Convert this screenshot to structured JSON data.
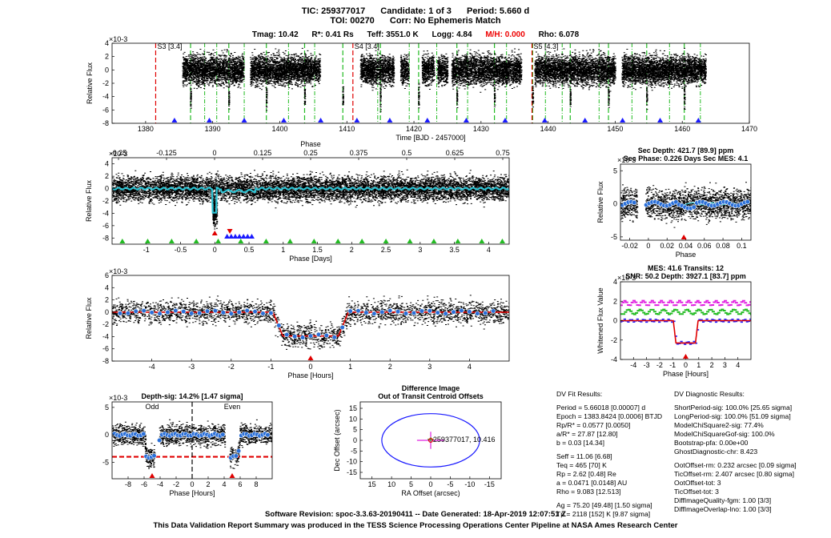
{
  "header": {
    "tic": "TIC: 259377017",
    "candidate": "Candidate: 1 of 3",
    "period": "Period: 5.660 d",
    "toi": "TOI: 00270",
    "corr": "Corr: No Ephemeris Match"
  },
  "stellar": {
    "tmag": "Tmag: 10.42",
    "rstar": "R*: 0.41 Rs",
    "teff": "Teff: 3551.0 K",
    "logg": "Logg: 4.84",
    "mh": "M/H: 0.000",
    "rho": "Rho: 6.078"
  },
  "colors": {
    "data": "#000000",
    "binned": "#2a6fd8",
    "model": "#e00000",
    "cyan": "#2ec4d4",
    "green": "#22bb22",
    "blue": "#1a1aff",
    "magenta": "#e020e0",
    "red_marker": "#e00000"
  },
  "chart_data": [
    {
      "id": "full_lightcurve",
      "type": "scatter",
      "xlabel": "Time [BJD - 2457000]",
      "ylabel": "Relative Flux",
      "exponent": "x10^-3",
      "xlim": [
        1375,
        1470
      ],
      "ylim": [
        -8,
        4
      ],
      "xticks": [
        1380,
        1390,
        1400,
        1410,
        1420,
        1430,
        1440,
        1450,
        1460,
        1470
      ],
      "yticks": [
        -8,
        -6,
        -4,
        -2,
        0,
        2,
        4
      ],
      "data_segments": [
        [
          1385.5,
          1394.6
        ],
        [
          1395.6,
          1406.0
        ],
        [
          1412.0,
          1417.0
        ],
        [
          1418.0,
          1419.2
        ],
        [
          1421.2,
          1423.0
        ],
        [
          1423.5,
          1425.0
        ],
        [
          1425.6,
          1436.0
        ],
        [
          1438.0,
          1450.0
        ],
        [
          1451.0,
          1463.5
        ]
      ],
      "sector_markers": [
        {
          "x": 1381.5,
          "label": "S3 [3.4]"
        },
        {
          "x": 1410.9,
          "label": "S4 [3.4]"
        },
        {
          "x": 1437.6,
          "label": "S5 [4.3]"
        }
      ],
      "transits_candidate": [
        1386.7,
        1392.4,
        1398.0,
        1403.7,
        1409.4,
        1415.0,
        1420.7,
        1426.4,
        1432.0,
        1437.7,
        1443.3,
        1449.0,
        1454.7,
        1460.3
      ],
      "transits_other": [
        1388.8,
        1390.6,
        1394.7,
        1401.3,
        1405.2,
        1414.6,
        1419.3,
        1423.4,
        1428.0,
        1433.8,
        1439.6,
        1442.1,
        1447.6,
        1452.5,
        1458.1,
        1462.7
      ],
      "triangles": [
        1384.3,
        1389.5,
        1394.7,
        1400.6,
        1406.1,
        1411.5,
        1416.4,
        1422.0,
        1427.8,
        1433.6,
        1439.5,
        1445.5,
        1451.1,
        1456.7,
        1462.4
      ]
    },
    {
      "id": "phase_folded_full",
      "type": "scatter",
      "xlabel": "Phase [Days]",
      "ylabel": "Relative Flux",
      "exponent": "x10^-3",
      "toplabel": "Phase",
      "xlim": [
        -1.5,
        4.3
      ],
      "ylim": [
        -9,
        5
      ],
      "xticks": [
        -1,
        -0.5,
        0,
        0.5,
        1,
        1.5,
        2,
        2.5,
        3,
        3.5,
        4
      ],
      "top_xticks": [
        "-0.25",
        "-0.125",
        "0",
        "0.125",
        "0.25",
        "0.375",
        "0.5",
        "0.625",
        "0.75"
      ],
      "yticks": [
        -8,
        -6,
        -4,
        -2,
        0,
        2,
        4
      ],
      "green_triangles": [
        -1.35,
        -0.98,
        -0.63,
        -0.27,
        0.05,
        0.38,
        0.75,
        1.1,
        1.45,
        1.8,
        2.15,
        2.5,
        2.85,
        3.2,
        3.55,
        3.9,
        4.2
      ],
      "blue_triangles": [
        0.18,
        0.24,
        0.3,
        0.36,
        0.42,
        0.48,
        0.54
      ],
      "red_triangle": 0.0
    },
    {
      "id": "secondary",
      "type": "scatter",
      "title": "Sec Depth: 421.7 [89.9] ppm",
      "subtitle": "Sec Phase: 0.226 Days   Sec MES: 4.1",
      "xlabel": "Phase",
      "ylabel": "Relative Flux",
      "exponent": "x10^-3",
      "xlim": [
        -0.03,
        0.11
      ],
      "ylim": [
        -5.5,
        6
      ],
      "xticks": [
        -0.02,
        0,
        0.02,
        0.04,
        0.06,
        0.08,
        0.1
      ],
      "yticks": [
        -5,
        0,
        5
      ],
      "red_triangle": 0.038
    },
    {
      "id": "transit_hours",
      "type": "scatter",
      "xlabel": "Phase [Hours]",
      "ylabel": "Relative Flux",
      "exponent": "x10^-3",
      "xlim": [
        -5,
        5
      ],
      "ylim": [
        -8,
        6
      ],
      "xticks": [
        -4,
        -3,
        -2,
        -1,
        0,
        1,
        2,
        3,
        4
      ],
      "yticks": [
        -8,
        -6,
        -4,
        -2,
        0,
        2,
        4,
        6
      ],
      "model": {
        "depth": -3.9,
        "t1": -0.95,
        "t2": -0.7,
        "t3": 0.7,
        "t4": 0.95
      },
      "red_triangle": 0.0
    },
    {
      "id": "whitened",
      "type": "line",
      "title": "MES: 41.6   Transits: 12",
      "subtitle": "SNR: 50.2   Depth: 3927.1 [83.7] ppm",
      "xlabel": "Phase [Hours]",
      "ylabel": "Whitened Flux Value",
      "exponent": "x10^-3",
      "xlim": [
        -5,
        5
      ],
      "ylim": [
        -4,
        4
      ],
      "xticks": [
        -4,
        -3,
        -2,
        -1,
        0,
        1,
        2,
        3,
        4
      ],
      "yticks": [
        -4,
        -2,
        0,
        2,
        4
      ],
      "magenta_level": 1.8,
      "green_level": 0.9,
      "red_triangle": 0.0
    },
    {
      "id": "odd_even",
      "type": "scatter",
      "title": "Depth-sig: 14.2% [1.47 sigma]",
      "xlabel": "Phase [Hours]",
      "exponent": "x10^-3",
      "labels": [
        "Odd",
        "Even"
      ],
      "xlim": [
        -10,
        10
      ],
      "ylim": [
        -8,
        6
      ],
      "xticks": [
        -8,
        -6,
        -4,
        -2,
        0,
        2,
        4,
        6,
        8
      ],
      "yticks": [
        -5,
        0,
        5
      ],
      "depth_level": -4.0,
      "odd_center": -5,
      "even_center": 5
    },
    {
      "id": "centroid",
      "type": "scatter",
      "title": "Difference Image",
      "subtitle": "Out of Transit Centroid Offsets",
      "xlabel": "RA Offset (arcsec)",
      "ylabel": "Dec Offset (arcsec)",
      "xlim": [
        18,
        -18
      ],
      "ylim": [
        -18,
        18
      ],
      "xticks": [
        15,
        10,
        5,
        0,
        -5,
        -10,
        -15
      ],
      "yticks": [
        -15,
        -10,
        -5,
        0,
        5,
        10,
        15
      ],
      "circle_radius": 12.5,
      "star_label": "259377017, 10.416"
    }
  ],
  "fit_results": {
    "title": "DV Fit Results:",
    "lines": [
      "Period = 5.66018 [0.00007] d",
      "Epoch = 1383.8424 [0.0006] BTJD",
      "Rp/R* = 0.0577 [0.0050]",
      "a/R* = 27.87 [12.80]",
      "b = 0.03 [14.34]",
      "",
      "Seff = 11.06 [6.68]",
      "Teq = 465 [70] K",
      "Rp = 2.62 [0.48] Re",
      "a = 0.0471 [0.0148] AU",
      "Rho = 9.083 [12.513]",
      "",
      "Ag = 75.20 [49.48]  [1.50 sigma]",
      "Tp = 2118 [152] K  [9.87 sigma]"
    ]
  },
  "diagnostic_results": {
    "title": "DV Diagnostic Results:",
    "lines": [
      "ShortPeriod-sig: 100.0% [25.65 sigma]",
      "LongPeriod-sig: 100.0% [51.09 sigma]",
      "ModelChiSquare2-sig: 77.4%",
      "ModelChiSquareGof-sig: 100.0%",
      "Bootstrap-pfa: 0.00e+00",
      "GhostDiagnostic-chr: 8.423",
      "",
      "OotOffset-rm: 0.232 arcsec [0.09 sigma]",
      "TicOffset-rm: 2.407 arcsec [0.80 sigma]",
      "OotOffset-tot: 3",
      "TicOffset-tot: 3",
      "DiffImageQuality-fgm: 1.00 [3/3]",
      "DiffImageOverlap-lno: 1.00 [3/3]"
    ]
  },
  "footer": {
    "revision": "Software Revision: spoc-3.3.63-20190411   --   Date Generated: 18-Apr-2019 12:07:51 Z",
    "note": "This Data Validation Report Summary was produced in the TESS Science Processing Operations Center Pipeline at NASA Ames Research Center"
  }
}
